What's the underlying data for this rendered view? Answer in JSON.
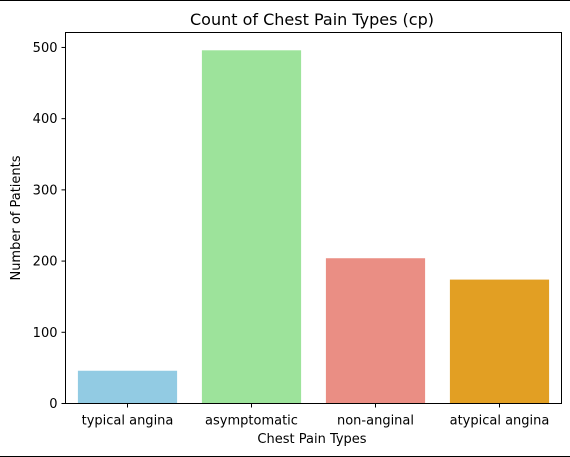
{
  "chart_data": {
    "type": "bar",
    "title": "Count of Chest Pain Types (cp)",
    "xlabel": "Chest Pain Types",
    "ylabel": "Number of Patients",
    "categories": [
      "typical angina",
      "asymptomatic",
      "non-anginal",
      "atypical angina"
    ],
    "values": [
      46,
      496,
      204,
      174
    ],
    "colors": [
      "#92cbe3",
      "#9de39b",
      "#ea8e84",
      "#e29f23"
    ],
    "yticks": [
      0,
      100,
      200,
      300,
      400,
      500
    ],
    "ylim": [
      0,
      521
    ],
    "grid": false,
    "legend": "none"
  }
}
